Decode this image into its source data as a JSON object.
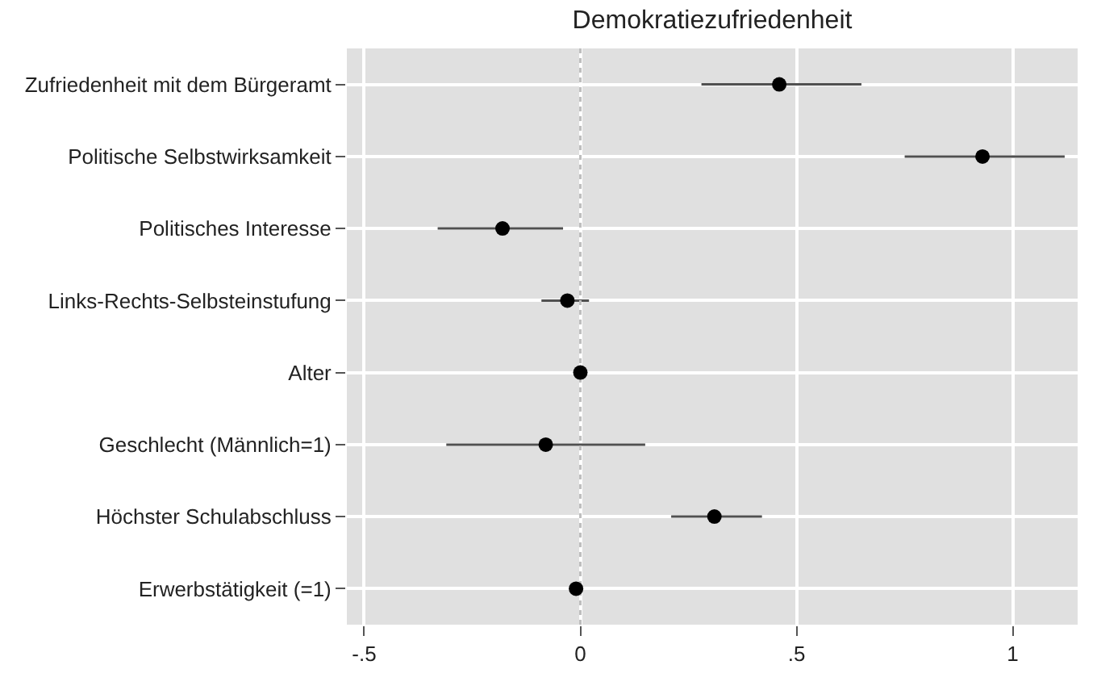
{
  "chart_data": {
    "type": "scatter",
    "title": "Demokratiezufriedenheit",
    "orientation": "horizontal",
    "categories": [
      "Zufriedenheit mit dem Bürgeramt",
      "Politische Selbstwirksamkeit",
      "Politisches Interesse",
      "Links-Rechts-Selbsteinstufung",
      "Alter",
      "Geschlecht (Männlich=1)",
      "Höchster Schulabschluss",
      "Erwerbstätigkeit (=1)"
    ],
    "values": [
      0.46,
      0.93,
      -0.18,
      -0.03,
      0.0,
      -0.08,
      0.31,
      -0.01
    ],
    "errors": [
      [
        0.28,
        0.65
      ],
      [
        0.75,
        1.12
      ],
      [
        -0.33,
        -0.04
      ],
      [
        -0.09,
        0.02
      ],
      null,
      [
        -0.31,
        0.15
      ],
      [
        0.21,
        0.42
      ],
      null
    ],
    "color": "#000000",
    "marker": "circle",
    "xlim": [
      -0.54,
      1.15
    ],
    "xticks": [
      {
        "value": -0.5,
        "label": "-.5"
      },
      0,
      {
        "value": 0.5,
        "label": ".5"
      },
      1
    ],
    "ref_lines": [
      {
        "axis": "x",
        "value": 0,
        "color": "#bebebe",
        "line_style": "dotted"
      }
    ],
    "grid": true
  }
}
